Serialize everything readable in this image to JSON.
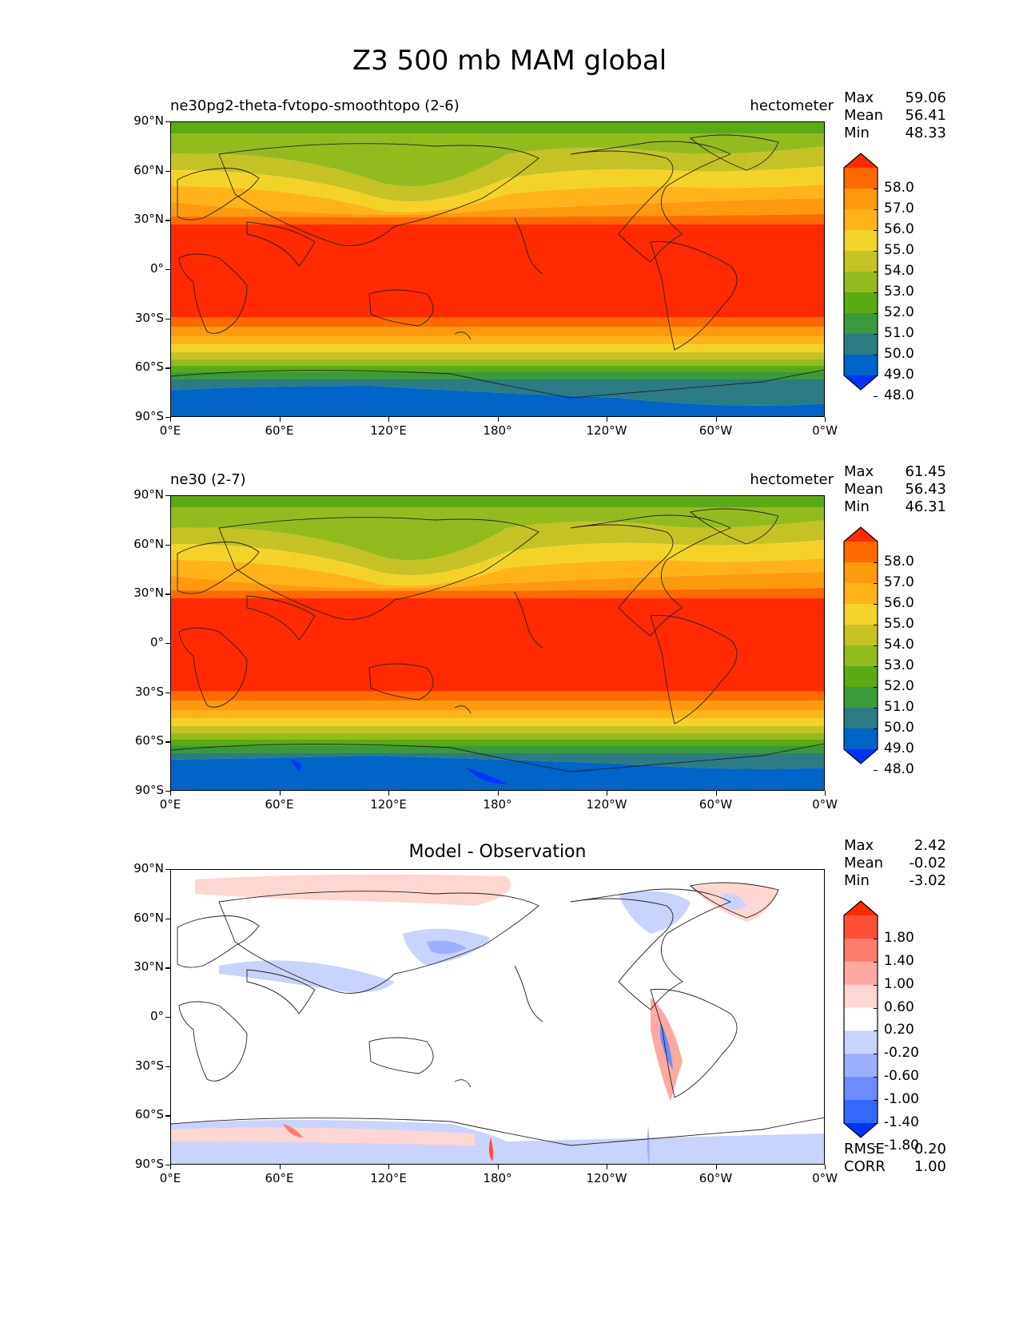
{
  "title": "Z3 500 mb MAM global",
  "lat_ticks": [
    "90°N",
    "60°N",
    "30°N",
    "0°",
    "30°S",
    "60°S",
    "90°S"
  ],
  "lon_ticks": [
    "0°E",
    "60°E",
    "120°E",
    "180°",
    "120°W",
    "60°W",
    "0°W"
  ],
  "colors": {
    "abs": [
      "#0433ff",
      "#0064c8",
      "#2a7b82",
      "#3a9a3c",
      "#5aaa14",
      "#94bb1e",
      "#c4c323",
      "#f4d329",
      "#ffb319",
      "#ff9a0e",
      "#ff6a00",
      "#ff2a00"
    ],
    "diff": [
      "#0433ff",
      "#3368ff",
      "#6a8cff",
      "#9aafff",
      "#c8d4ff",
      "#ffffff",
      "#ffd6d0",
      "#ffaaa0",
      "#ff7d6a",
      "#ff4f37",
      "#ff2a00"
    ]
  },
  "panels": [
    {
      "id": "test",
      "title_left": "ne30pg2-theta-fvtopo-smoothtopo (2-6)",
      "title_right": "hectometer",
      "stats": [
        {
          "label": "Max",
          "value": "59.06"
        },
        {
          "label": "Mean",
          "value": "56.41"
        },
        {
          "label": "Min",
          "value": "48.33"
        }
      ],
      "colorbar_labels": [
        "58.0",
        "57.0",
        "56.0",
        "55.0",
        "54.0",
        "53.0",
        "52.0",
        "51.0",
        "50.0",
        "49.0",
        "48.0"
      ]
    },
    {
      "id": "ref",
      "title_left": "ne30 (2-7)",
      "title_right": "hectometer",
      "stats": [
        {
          "label": "Max",
          "value": "61.45"
        },
        {
          "label": "Mean",
          "value": "56.43"
        },
        {
          "label": "Min",
          "value": "46.31"
        }
      ],
      "colorbar_labels": [
        "58.0",
        "57.0",
        "56.0",
        "55.0",
        "54.0",
        "53.0",
        "52.0",
        "51.0",
        "50.0",
        "49.0",
        "48.0"
      ]
    },
    {
      "id": "diff",
      "title_center": "Model - Observation",
      "stats": [
        {
          "label": "Max",
          "value": "2.42"
        },
        {
          "label": "Mean",
          "value": "-0.02"
        },
        {
          "label": "Min",
          "value": "-3.02"
        }
      ],
      "colorbar_labels": [
        "1.80",
        "1.40",
        "1.00",
        "0.60",
        "0.20",
        "-0.20",
        "-0.60",
        "-1.00",
        "-1.40",
        "-1.80"
      ],
      "metrics": [
        {
          "label": "RMSE",
          "value": "0.20"
        },
        {
          "label": "CORR",
          "value": "1.00"
        }
      ]
    }
  ]
}
